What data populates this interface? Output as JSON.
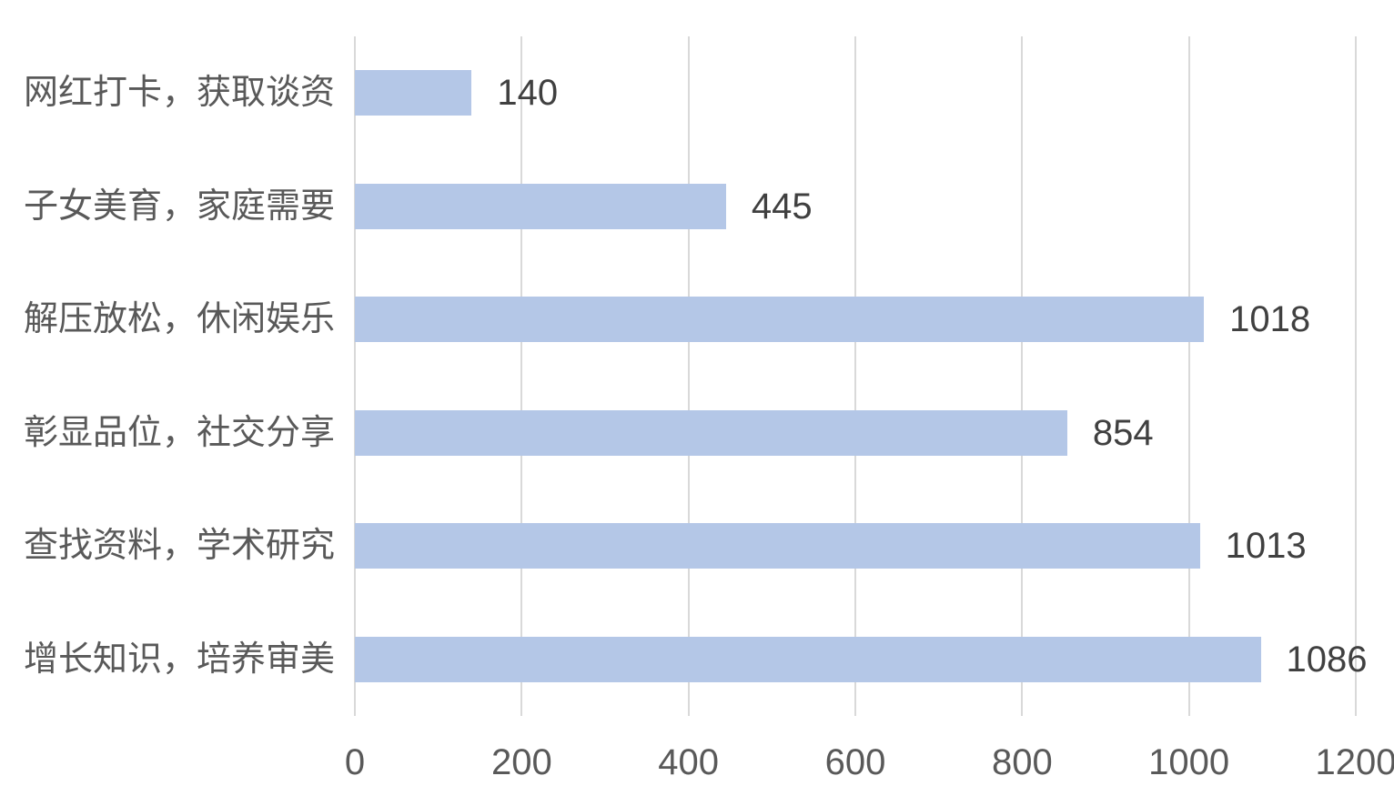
{
  "chart_data": {
    "type": "bar",
    "orientation": "horizontal",
    "title": "",
    "categories": [
      "网红打卡，获取谈资",
      "子女美育，家庭需要",
      "解压放松，休闲娱乐",
      "彰显品位，社交分享",
      "查找资料，学术研究",
      "增长知识，培养审美"
    ],
    "values": [
      140,
      445,
      1018,
      854,
      1013,
      1086
    ],
    "data_labels": [
      "140",
      "445",
      "1018",
      "854",
      "1013",
      "1086"
    ],
    "x_ticks": [
      "0",
      "200",
      "400",
      "600",
      "800",
      "1000",
      "1200"
    ],
    "xlim": [
      0,
      1200
    ],
    "xlabel": "",
    "ylabel": "",
    "grid": "vertical-gridlines",
    "legend_position": "none",
    "colors": {
      "bar_fill": "#b4c7e7",
      "gridline": "#d9d9d9",
      "category_label_text": "#595959",
      "tick_label_text": "#595959",
      "data_label_text": "#404040",
      "background": "#ffffff"
    }
  }
}
